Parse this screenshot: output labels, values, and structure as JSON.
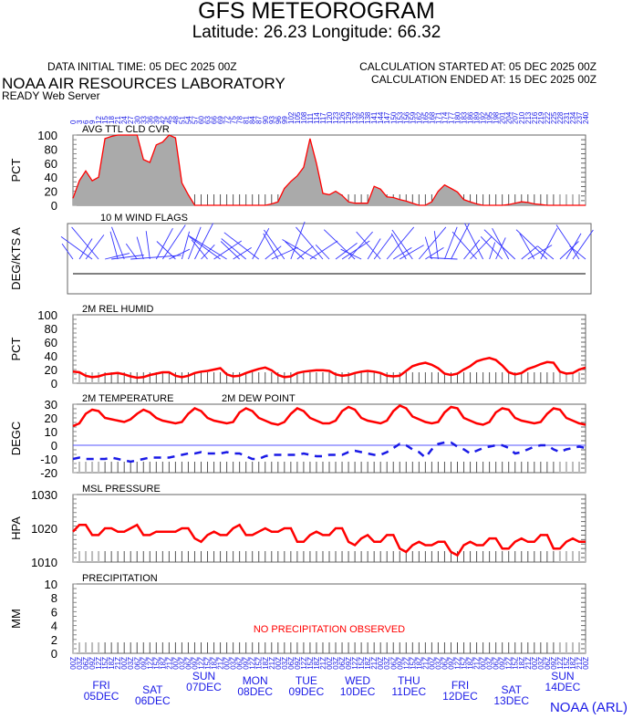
{
  "header": {
    "title": "GFS METEOROGRAM",
    "subtitle": "Latitude: 26.23 Longitude:  66.32",
    "init_time": "DATA INITIAL TIME: 05 DEC 2025 00Z",
    "lab_name": "NOAA AIR RESOURCES LABORATORY",
    "server": "READY Web Server",
    "calc_started": "CALCULATION STARTED AT: 05 DEC 2025 00Z",
    "calc_ended": "CALCULATION ENDED AT: 15 DEC 2025 00Z"
  },
  "footer": "NOAA (ARL)",
  "colors": {
    "red": "#ff0000",
    "blue": "#1a1ae6",
    "fill": "#aaaaaa",
    "grid_tick": "#bbbbbb"
  },
  "chart_data": [
    {
      "type": "area",
      "title": "AVG TTL CLD CVR",
      "ylabel": "PCT",
      "ylim": [
        0,
        100
      ],
      "yticks": [
        "100",
        "80",
        "60",
        "40",
        "20",
        "0"
      ],
      "x_forecast_hours": [
        0,
        3,
        6,
        9,
        12,
        15,
        18,
        21,
        24,
        27,
        30,
        33,
        36,
        39,
        42,
        45,
        48,
        51,
        54,
        57,
        60,
        63,
        66,
        69,
        72,
        75,
        78,
        81,
        84,
        87,
        90,
        93,
        96,
        99,
        102,
        105,
        108,
        111,
        114,
        117,
        120,
        123,
        126,
        129,
        132,
        135,
        138,
        141,
        144,
        147,
        150,
        153,
        156,
        159,
        162,
        165,
        168,
        171,
        174,
        177,
        180,
        183,
        186,
        189,
        192,
        195,
        198,
        201,
        204,
        207,
        210,
        213,
        216,
        219,
        222,
        225,
        228,
        231,
        234,
        237,
        240
      ],
      "values": [
        10,
        35,
        49,
        35,
        40,
        95,
        98,
        101,
        100,
        101,
        101,
        65,
        61,
        86,
        90,
        100,
        96,
        32,
        15,
        0,
        0,
        0,
        0,
        0,
        0,
        0,
        0,
        0,
        0,
        0,
        0,
        2,
        5,
        24,
        34,
        42,
        54,
        95,
        60,
        17,
        15,
        20,
        14,
        5,
        3,
        3,
        3,
        27,
        23,
        12,
        11,
        8,
        6,
        3,
        0,
        0,
        5,
        20,
        29,
        24,
        19,
        8,
        5,
        2,
        0,
        0,
        0,
        0,
        1,
        3,
        5,
        4,
        2,
        1,
        0,
        0,
        0,
        0,
        0,
        0,
        0
      ]
    },
    {
      "type": "wind_barbs",
      "title": "10 M  WIND FLAGS",
      "ylabel": "DEG/KTS  A"
    },
    {
      "type": "line",
      "title": "2M REL HUMID",
      "ylabel": "PCT",
      "ylim": [
        0,
        100
      ],
      "yticks": [
        "100",
        "80",
        "60",
        "40",
        "20",
        "0"
      ],
      "series": [
        {
          "name": "2M REL HUMID",
          "values": [
            17,
            16,
            11,
            9,
            10,
            13,
            14,
            15,
            13,
            10,
            8,
            9,
            12,
            14,
            16,
            16,
            11,
            9,
            11,
            15,
            17,
            18,
            20,
            22,
            13,
            10,
            11,
            15,
            18,
            21,
            23,
            19,
            12,
            9,
            10,
            15,
            17,
            18,
            19,
            19,
            18,
            13,
            11,
            12,
            15,
            17,
            18,
            17,
            15,
            11,
            10,
            11,
            18,
            25,
            28,
            30,
            27,
            22,
            14,
            12,
            14,
            20,
            25,
            32,
            35,
            37,
            34,
            26,
            16,
            13,
            15,
            21,
            24,
            28,
            31,
            30,
            17,
            14,
            15,
            20,
            23
          ]
        }
      ]
    },
    {
      "type": "line",
      "title": "",
      "ylabel": "DEGC",
      "ylim": [
        -20,
        30
      ],
      "yticks": [
        "30",
        "20",
        "10",
        "0",
        "-10",
        "-20"
      ],
      "legend": [
        "2M TEMPERATURE",
        "2M   DEW POINT"
      ],
      "series": [
        {
          "name": "2M TEMPERATURE",
          "values": [
            14,
            16,
            23,
            26,
            25,
            20,
            19,
            18,
            17,
            19,
            23,
            26,
            24,
            20,
            18,
            17,
            16,
            17,
            23,
            27,
            25,
            20,
            18,
            17,
            16,
            17,
            24,
            27,
            25,
            20,
            18,
            16,
            15,
            17,
            23,
            27,
            25,
            20,
            18,
            16,
            16,
            18,
            25,
            28,
            26,
            20,
            18,
            17,
            16,
            18,
            25,
            29,
            27,
            21,
            19,
            17,
            16,
            17,
            24,
            28,
            27,
            20,
            18,
            16,
            15,
            17,
            24,
            27,
            26,
            20,
            18,
            17,
            16,
            17,
            23,
            27,
            26,
            20,
            18,
            16,
            15
          ]
        },
        {
          "name": "2M   DEW POINT",
          "values": [
            -10,
            -9,
            -10,
            -10,
            -10,
            -10,
            -9,
            -10,
            -11,
            -12,
            -11,
            -10,
            -9,
            -9,
            -9,
            -9,
            -8,
            -7,
            -6,
            -6,
            -5,
            -6,
            -6,
            -6,
            -5,
            -6,
            -6,
            -8,
            -10,
            -10,
            -8,
            -7,
            -7,
            -7,
            -7,
            -7,
            -6,
            -7,
            -8,
            -8,
            -7,
            -7,
            -7,
            -5,
            -4,
            -5,
            -6,
            -7,
            -7,
            -5,
            -2,
            1,
            0,
            -3,
            -5,
            -9,
            -3,
            1,
            2,
            2,
            -1,
            -3,
            -6,
            -4,
            -2,
            -1,
            0,
            0,
            -2,
            -6,
            -5,
            -3,
            -1,
            0,
            0,
            -3,
            -5,
            -3,
            -2,
            -1,
            -2
          ]
        }
      ]
    },
    {
      "type": "line",
      "title": "MSL PRESSURE",
      "ylabel": "HPA",
      "ylim": [
        1010,
        1030
      ],
      "yticks": [
        "1030",
        "1020",
        "1010"
      ],
      "series": [
        {
          "name": "MSL PRESSURE",
          "values": [
            1019,
            1021,
            1021,
            1018,
            1018,
            1020,
            1020,
            1019,
            1019,
            1020,
            1021,
            1018,
            1018,
            1019,
            1019,
            1019,
            1019,
            1020,
            1020,
            1017,
            1016,
            1018,
            1019,
            1018,
            1018,
            1020,
            1021,
            1018,
            1018,
            1019,
            1020,
            1019,
            1019,
            1020,
            1020,
            1016,
            1016,
            1018,
            1019,
            1018,
            1018,
            1020,
            1020,
            1016,
            1015,
            1017,
            1018,
            1016,
            1016,
            1018,
            1018,
            1014,
            1013,
            1015,
            1016,
            1015,
            1015,
            1016,
            1016,
            1013,
            1012,
            1015,
            1016,
            1015,
            1015,
            1017,
            1017,
            1014,
            1014,
            1016,
            1017,
            1016,
            1016,
            1018,
            1018,
            1014,
            1014,
            1016,
            1017,
            1016,
            1016
          ]
        }
      ]
    },
    {
      "type": "bar",
      "title": "PRECIPITATION",
      "ylabel": "MM",
      "ylim": [
        0,
        10
      ],
      "yticks": [
        "10",
        "8",
        "6",
        "4",
        "2",
        "0"
      ],
      "annotation": "NO PRECIPITATION OBSERVED",
      "values": []
    }
  ],
  "x_axis": {
    "top_labels": [
      "0",
      "3",
      "6",
      "9",
      "12",
      "15",
      "18",
      "21",
      "24",
      "27",
      "30",
      "33",
      "36",
      "39",
      "42",
      "45",
      "48",
      "51",
      "54",
      "57",
      "60",
      "63",
      "66",
      "69",
      "72",
      "75",
      "78",
      "81",
      "84",
      "87",
      "90",
      "93",
      "96",
      "99",
      "102",
      "105",
      "108",
      "111",
      "114",
      "117",
      "120",
      "123",
      "126",
      "129",
      "132",
      "135",
      "138",
      "141",
      "144",
      "147",
      "150",
      "153",
      "156",
      "159",
      "162",
      "165",
      "168",
      "171",
      "174",
      "177",
      "180",
      "183",
      "186",
      "189",
      "192",
      "195",
      "198",
      "201",
      "204",
      "207",
      "210",
      "213",
      "216",
      "219",
      "222",
      "225",
      "228",
      "231",
      "234",
      "237",
      "240"
    ],
    "bottom_labels": [
      "00Z",
      "03Z",
      "06Z",
      "09Z",
      "12Z",
      "15Z",
      "18Z",
      "21Z"
    ],
    "days": [
      {
        "dow": "FRI",
        "date": "05DEC"
      },
      {
        "dow": "SAT",
        "date": "06DEC"
      },
      {
        "dow": "SUN",
        "date": "07DEC"
      },
      {
        "dow": "MON",
        "date": "08DEC"
      },
      {
        "dow": "TUE",
        "date": "09DEC"
      },
      {
        "dow": "WED",
        "date": "10DEC"
      },
      {
        "dow": "THU",
        "date": "11DEC"
      },
      {
        "dow": "FRI",
        "date": "12DEC"
      },
      {
        "dow": "SAT",
        "date": "13DEC"
      },
      {
        "dow": "SUN",
        "date": "14DEC"
      }
    ]
  }
}
